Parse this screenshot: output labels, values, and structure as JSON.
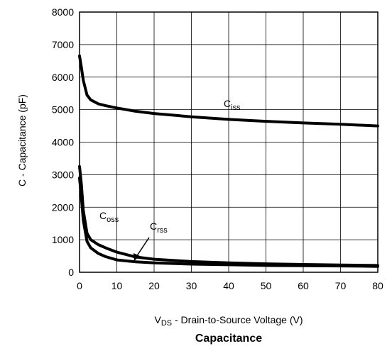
{
  "chart_data": {
    "type": "line",
    "title": "",
    "caption": "Capacitance",
    "xlabel": {
      "main": "V",
      "sub": "DS",
      "rest": " - Drain-to-Source Voltage (V)"
    },
    "ylabel": "C - Capacitance (pF)",
    "xlim": [
      0,
      80
    ],
    "ylim": [
      0,
      8000
    ],
    "xticks": [
      "0",
      "10",
      "20",
      "30",
      "40",
      "50",
      "60",
      "70",
      "80"
    ],
    "yticks": [
      "0",
      "1000",
      "2000",
      "3000",
      "4000",
      "5000",
      "6000",
      "7000",
      "8000"
    ],
    "grid": true,
    "legend": "none",
    "series": [
      {
        "name": "Ciss",
        "label_main": "C",
        "label_sub": "iss",
        "color": "#000000",
        "x": [
          0,
          0.5,
          1,
          2,
          3,
          5,
          7,
          10,
          15,
          20,
          30,
          40,
          50,
          60,
          70,
          80
        ],
        "y": [
          6650,
          6300,
          5900,
          5450,
          5300,
          5180,
          5120,
          5050,
          4950,
          4880,
          4780,
          4700,
          4640,
          4590,
          4550,
          4500
        ]
      },
      {
        "name": "Coss",
        "label_main": "C",
        "label_sub": "oss",
        "color": "#000000",
        "x": [
          0,
          0.5,
          1,
          2,
          3,
          5,
          7,
          10,
          15,
          20,
          30,
          40,
          50,
          60,
          70,
          80
        ],
        "y": [
          3250,
          2700,
          1900,
          1200,
          1000,
          850,
          750,
          620,
          470,
          400,
          330,
          290,
          260,
          240,
          225,
          210
        ]
      },
      {
        "name": "Crss",
        "label_main": "C",
        "label_sub": "rss",
        "color": "#000000",
        "x": [
          0,
          0.5,
          1,
          2,
          3,
          5,
          7,
          10,
          15,
          20,
          30,
          40,
          50,
          60,
          70,
          80
        ],
        "y": [
          2900,
          2300,
          1600,
          950,
          750,
          580,
          480,
          380,
          320,
          290,
          250,
          230,
          210,
          200,
          195,
          180
        ]
      }
    ]
  }
}
